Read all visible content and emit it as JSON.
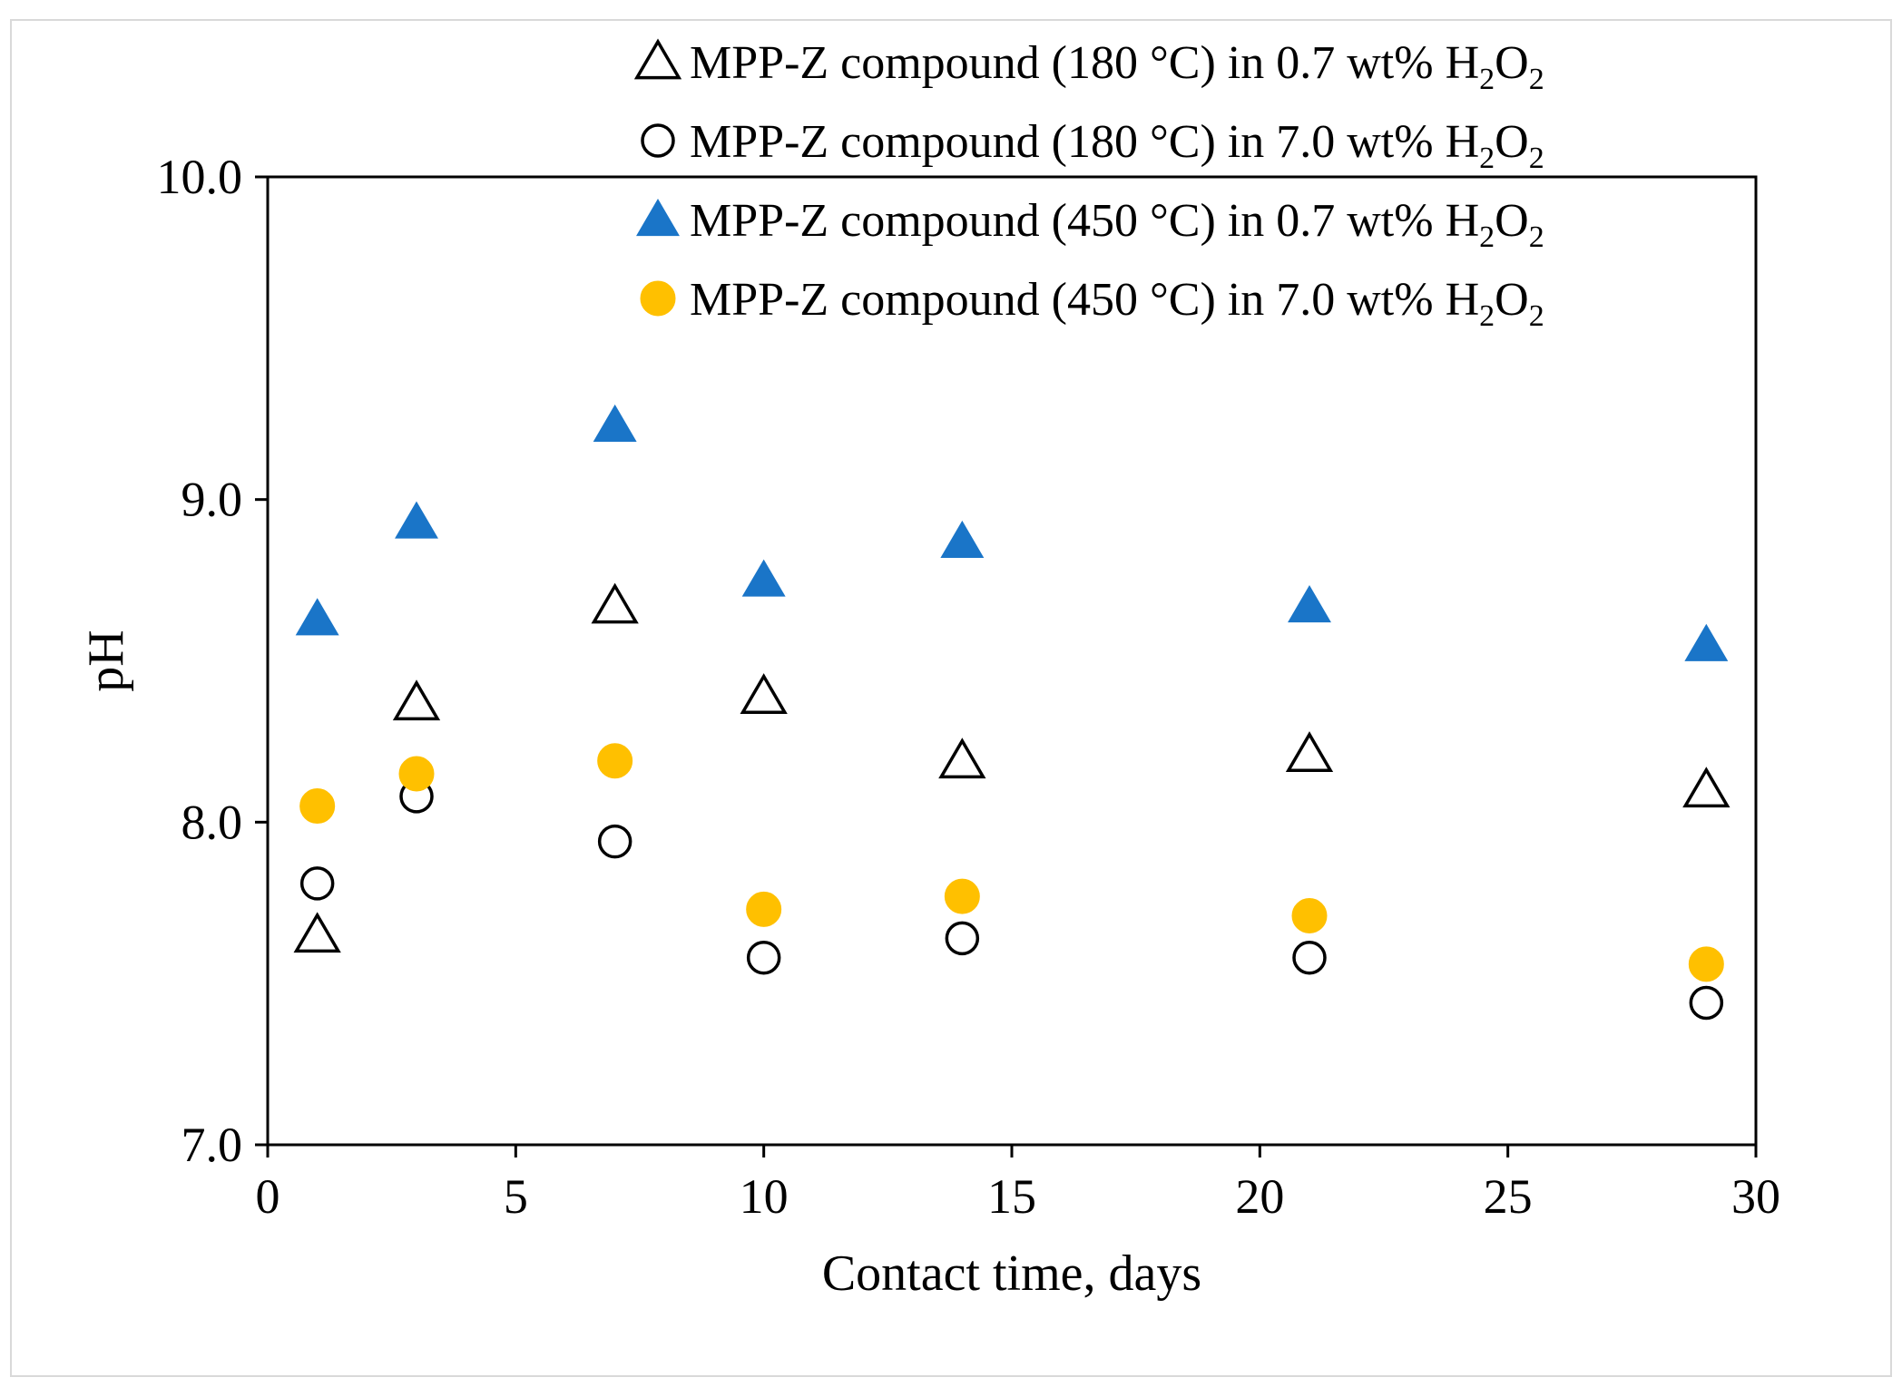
{
  "chart_data": {
    "type": "scatter",
    "title": "",
    "xlabel": "Contact time, days",
    "ylabel": "pH",
    "xlim": [
      0,
      30
    ],
    "ylim": [
      7.0,
      10.0
    ],
    "xticks": [
      "0",
      "5",
      "10",
      "15",
      "20",
      "25",
      "30"
    ],
    "yticks": [
      "7.0",
      "8.0",
      "9.0",
      "10.0"
    ],
    "legend_position": "top-right",
    "series": [
      {
        "name": "MPP-Z compound (180 °C) in 0.7 wt% H2O2",
        "label_main": "MPP-Z compound (180 °C) in 0.7 wt% ",
        "marker": "triangle-open",
        "color": "#000000",
        "x": [
          1,
          3,
          7,
          10,
          14,
          21,
          29
        ],
        "y": [
          7.65,
          8.37,
          8.67,
          8.39,
          8.19,
          8.21,
          8.1
        ]
      },
      {
        "name": "MPP-Z compound (180 °C) in 7.0 wt% H2O2",
        "label_main": "MPP-Z compound (180 °C) in 7.0 wt% ",
        "marker": "circle-open",
        "color": "#000000",
        "x": [
          1,
          3,
          7,
          10,
          14,
          21,
          29
        ],
        "y": [
          7.81,
          8.08,
          7.94,
          7.58,
          7.64,
          7.58,
          7.44
        ]
      },
      {
        "name": "MPP-Z compound (450 °C) in 0.7 wt% H2O2",
        "label_main": "MPP-Z compound (450 °C) in 0.7 wt% ",
        "marker": "triangle-filled",
        "color": "#1a75c8",
        "x": [
          1,
          3,
          7,
          10,
          14,
          21,
          29
        ],
        "y": [
          8.63,
          8.93,
          9.23,
          8.75,
          8.87,
          8.67,
          8.55
        ]
      },
      {
        "name": "MPP-Z compound (450 °C) in 7.0 wt% H2O2",
        "label_main": "MPP-Z compound (450 °C) in 7.0 wt% ",
        "marker": "circle-filled",
        "color": "#ffc000",
        "x": [
          1,
          3,
          7,
          10,
          14,
          21,
          29
        ],
        "y": [
          8.05,
          8.15,
          8.19,
          7.73,
          7.77,
          7.71,
          7.56
        ]
      }
    ]
  }
}
